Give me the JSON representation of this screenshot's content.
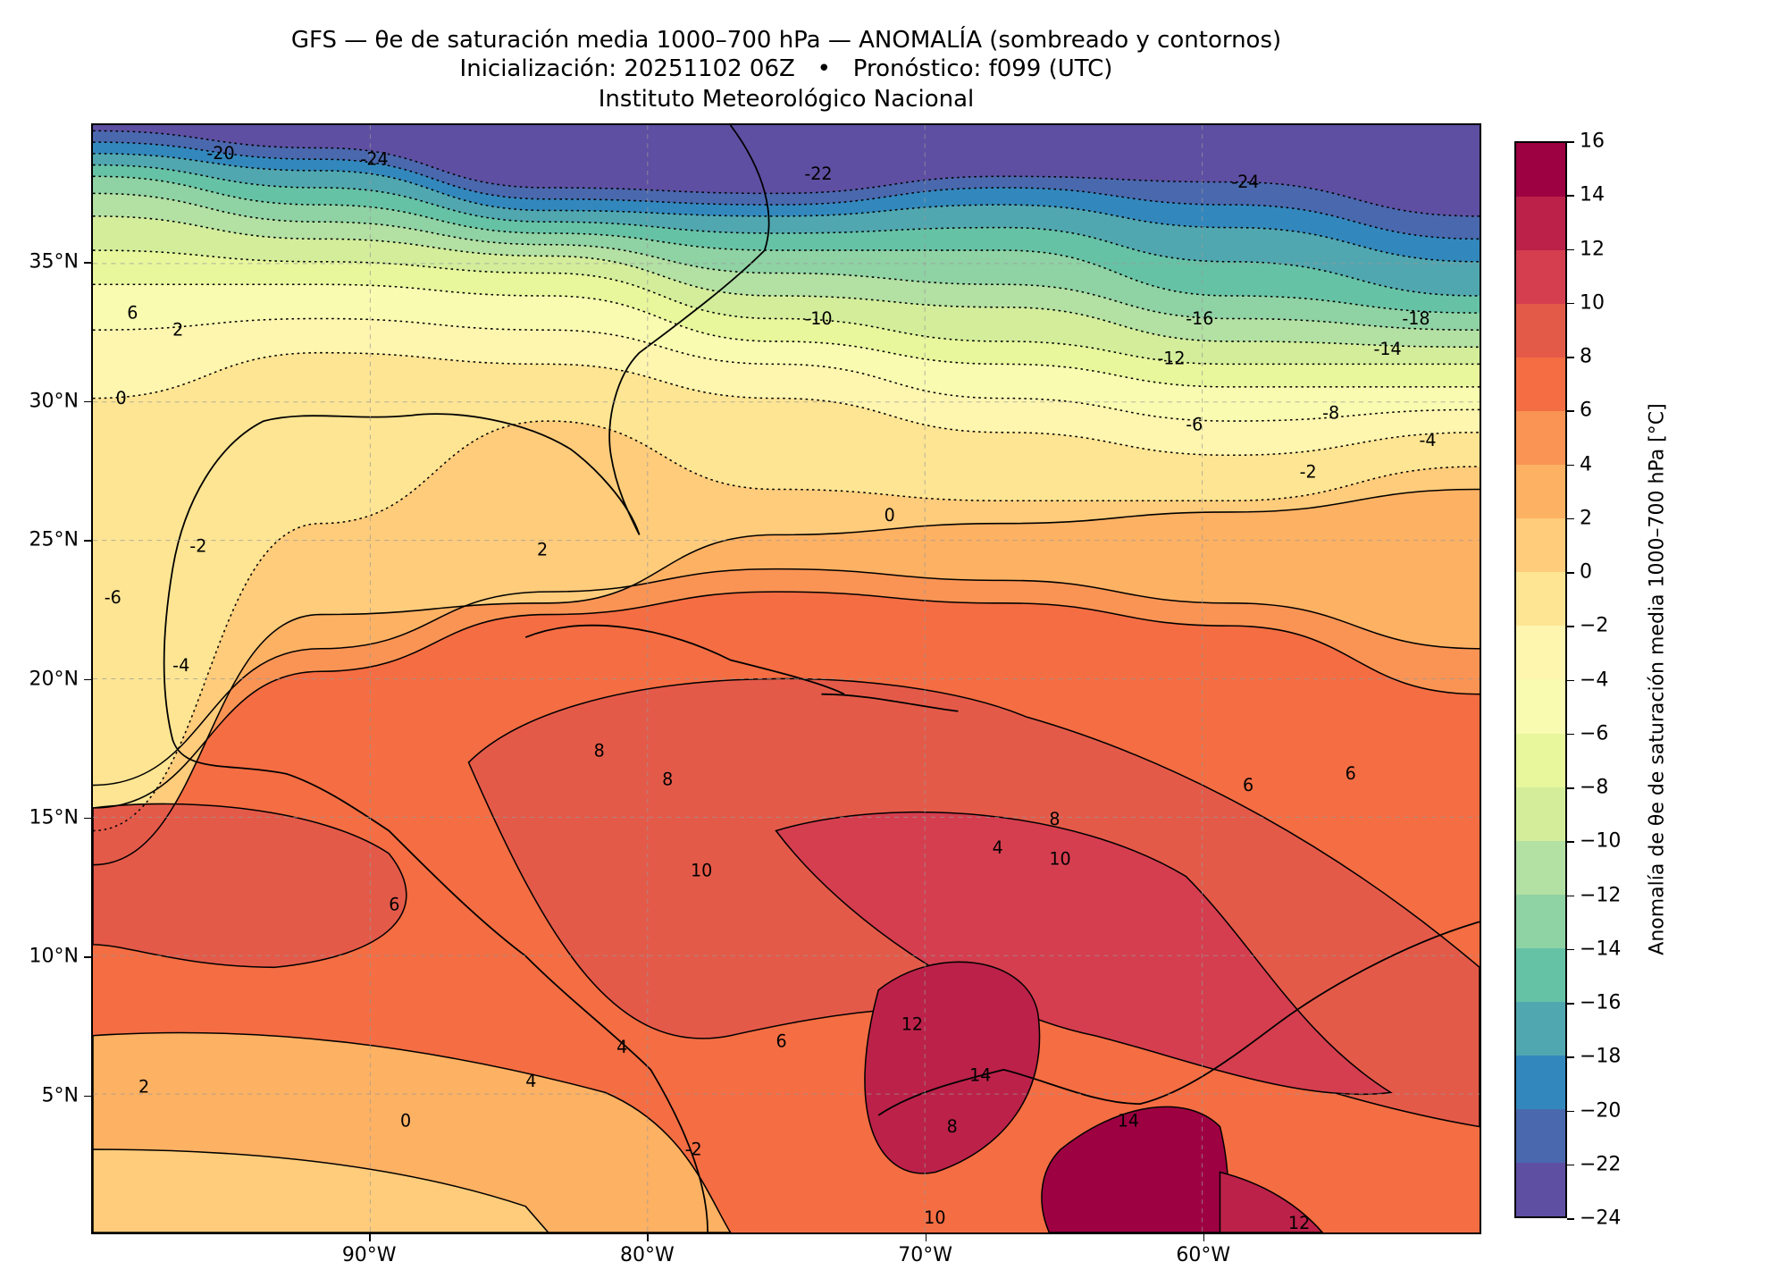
{
  "header": {
    "title_line1": "GFS — θe de saturación media 1000–700 hPa — ANOMALÍA (sombreado y contornos)",
    "title_line2": "Inicialización: 20251102 06Z   •   Pronóstico: f099 (UTC)",
    "title_line3": "Instituto Meteorológico Nacional"
  },
  "chart_data": {
    "type": "heatmap",
    "subtype": "filled-contour map",
    "extent": {
      "lon": [
        -100,
        -50
      ],
      "lat": [
        0,
        40
      ]
    },
    "x_ticks": [
      {
        "value": -90,
        "label": "90°W"
      },
      {
        "value": -80,
        "label": "80°W"
      },
      {
        "value": -70,
        "label": "70°W"
      },
      {
        "value": -60,
        "label": "60°W"
      }
    ],
    "y_ticks": [
      {
        "value": 5,
        "label": "5°N"
      },
      {
        "value": 10,
        "label": "10°N"
      },
      {
        "value": 15,
        "label": "15°N"
      },
      {
        "value": 20,
        "label": "20°N"
      },
      {
        "value": 25,
        "label": "25°N"
      },
      {
        "value": 30,
        "label": "30°N"
      },
      {
        "value": 35,
        "label": "35°N"
      }
    ],
    "grid": true,
    "colorbar": {
      "label": "Anomalía de θe de saturación media 1000–700 hPa [°C]",
      "range": [
        -24,
        16
      ],
      "levels": [
        16,
        14,
        12,
        10,
        8,
        6,
        4,
        2,
        0,
        -2,
        -4,
        -6,
        -8,
        -10,
        -12,
        -14,
        -16,
        -18,
        -20,
        -22,
        -24
      ],
      "tick_labels": [
        "16",
        "14",
        "12",
        "10",
        "8",
        "6",
        "4",
        "2",
        "0",
        "−2",
        "−4",
        "−6",
        "−8",
        "−10",
        "−12",
        "−14",
        "−16",
        "−18",
        "−20",
        "−22",
        "−24"
      ],
      "colors": [
        "#9e0142",
        "#bc2149",
        "#d53e4f",
        "#e45a49",
        "#f46d43",
        "#f99455",
        "#fdb163",
        "#fecc7b",
        "#fee593",
        "#fef5af",
        "#f8fbb0",
        "#e8f69c",
        "#d3ed9b",
        "#b3e0a3",
        "#8fd2a4",
        "#66c2a5",
        "#51a7b0",
        "#3288bd",
        "#4a68ae",
        "#5e4fa2"
      ],
      "placement": "right"
    },
    "contour_labels": [
      "-20",
      "-24",
      "-22",
      "-24",
      "-10",
      "-16",
      "-12",
      "-18",
      "-14",
      "-8",
      "-6",
      "-4",
      "-2",
      "0",
      "2",
      "-2",
      "-4",
      "-6",
      "6",
      "2",
      "0",
      "4",
      "8",
      "6",
      "6",
      "8",
      "10",
      "10",
      "8",
      "6",
      "4",
      "12",
      "14",
      "14",
      "12",
      "8",
      "10",
      "6",
      "4",
      "2",
      "0",
      "-2"
    ]
  }
}
